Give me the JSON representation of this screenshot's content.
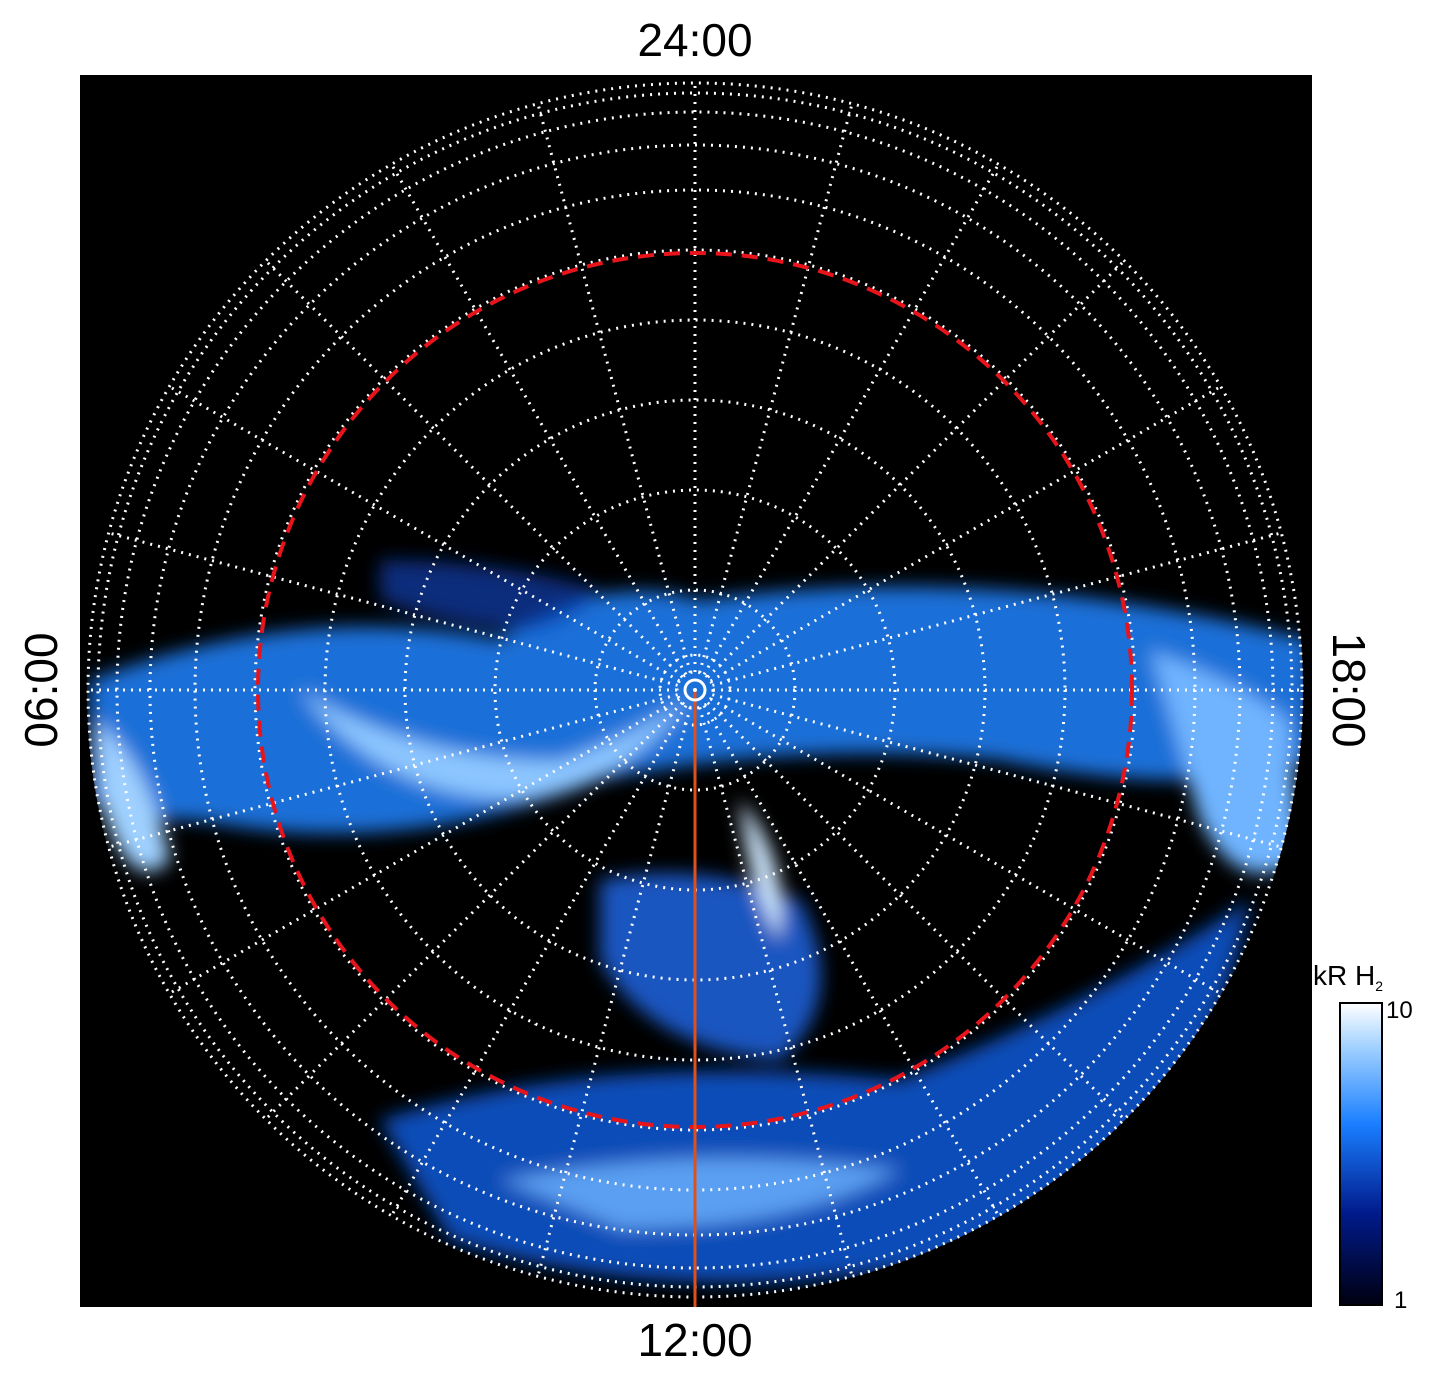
{
  "labels": {
    "top": "24:00",
    "bottom": "12:00",
    "left": "06:00",
    "right": "18:00"
  },
  "colorbar": {
    "title": "kR H",
    "title_subscript": "2",
    "ticks": [
      10,
      1
    ]
  }
}
